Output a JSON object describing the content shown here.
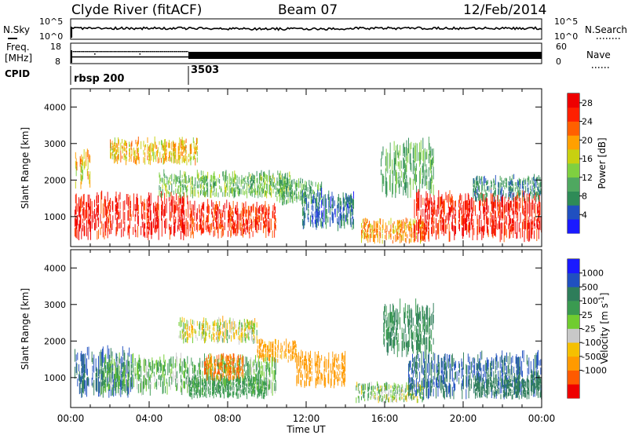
{
  "header": {
    "title": "Clyde River (fitACF)",
    "beam": "Beam 07",
    "date": "12/Feb/2014"
  },
  "noise_panel": {
    "left_label": "N.Sky",
    "right_label": "N.Search",
    "left_ticks": [
      "10^5",
      "10^0"
    ],
    "right_ticks": [
      "10^5",
      "10^0"
    ]
  },
  "freq_panel": {
    "left_label_line1": "Freq.",
    "left_label_line2": "[MHz]",
    "right_label": "Nave",
    "left_ticks": [
      "18",
      "8"
    ],
    "right_ticks": [
      "60",
      "0"
    ]
  },
  "cpid_panel": {
    "label": "CPID",
    "segments": [
      {
        "start_hour": 0,
        "text": "rbsp 200"
      },
      {
        "start_hour": 6,
        "text": "3503"
      }
    ]
  },
  "colors": {
    "power_scale": [
      "#1a1aff",
      "#2050c0",
      "#2e8b57",
      "#4fa860",
      "#7fd040",
      "#c8d010",
      "#ffa000",
      "#ff6000",
      "#ff2000",
      "#ee0000"
    ],
    "velocity_scale": [
      "#ee0000",
      "#ff5a00",
      "#ff9a00",
      "#f5c000",
      "#c8c8c8",
      "#70cc30",
      "#3a9a50",
      "#2e7d5a",
      "#2050c0",
      "#1a1aff"
    ]
  },
  "chart_data": [
    {
      "type": "heatmap",
      "name": "power",
      "xlabel": "Time UT",
      "ylabel": "Slant Range [km]",
      "xlim": [
        0,
        24
      ],
      "ylim": [
        180,
        4500
      ],
      "x_tick_labels": [
        "00:00",
        "04:00",
        "08:00",
        "12:00",
        "16:00",
        "20:00",
        "00:00"
      ],
      "y_ticks": [
        1000,
        2000,
        3000,
        4000
      ],
      "colorbar_label": "Power [dB]",
      "colorbar_ticks": [
        4,
        8,
        12,
        16,
        20,
        24,
        28
      ],
      "colorbar_range": [
        0,
        30
      ],
      "regions": [
        {
          "t": [
            0.2,
            6.0
          ],
          "r": [
            350,
            1750
          ],
          "v": 27
        },
        {
          "t": [
            0.2,
            1.0
          ],
          "r": [
            1750,
            2900
          ],
          "v": 18
        },
        {
          "t": [
            6.0,
            10.5
          ],
          "r": [
            400,
            1500
          ],
          "v": 25
        },
        {
          "t": [
            4.5,
            11.2
          ],
          "r": [
            1500,
            2300
          ],
          "v": 12
        },
        {
          "t": [
            2.0,
            6.5
          ],
          "r": [
            2400,
            3200
          ],
          "v": 18
        },
        {
          "t": [
            10.5,
            12.8
          ],
          "r": [
            1300,
            2100
          ],
          "v": 10
        },
        {
          "t": [
            11.8,
            14.5
          ],
          "r": [
            600,
            1800
          ],
          "v": 6
        },
        {
          "t": [
            14.8,
            18.0
          ],
          "r": [
            250,
            1000
          ],
          "v": 20
        },
        {
          "t": [
            15.8,
            18.5
          ],
          "r": [
            1500,
            3200
          ],
          "v": 10
        },
        {
          "t": [
            17.5,
            24.0
          ],
          "r": [
            300,
            1800
          ],
          "v": 27
        },
        {
          "t": [
            20.5,
            24.0
          ],
          "r": [
            1400,
            2200
          ],
          "v": 8
        }
      ]
    },
    {
      "type": "heatmap",
      "name": "velocity",
      "xlabel": "Time UT",
      "ylabel": "Slant Range [km]",
      "xlim": [
        0,
        24
      ],
      "ylim": [
        180,
        4500
      ],
      "x_tick_labels": [
        "00:00",
        "04:00",
        "08:00",
        "12:00",
        "16:00",
        "20:00",
        "00:00"
      ],
      "y_ticks": [
        1000,
        2000,
        3000,
        4000
      ],
      "colorbar_label": "Velocity [m s^-1]",
      "colorbar_ticks": [
        "1000",
        "500",
        "100",
        "25",
        "-25",
        "-100",
        "-500",
        "-1000"
      ],
      "regions": [
        {
          "t": [
            0.2,
            3.2
          ],
          "r": [
            400,
            1900
          ],
          "v": 1000
        },
        {
          "t": [
            1.5,
            10.5
          ],
          "r": [
            500,
            1700
          ],
          "v": 100
        },
        {
          "t": [
            6.0,
            10.0
          ],
          "r": [
            400,
            1100
          ],
          "v": 400
        },
        {
          "t": [
            6.8,
            8.8
          ],
          "r": [
            900,
            1700
          ],
          "v": -500
        },
        {
          "t": [
            5.5,
            9.5
          ],
          "r": [
            1900,
            2700
          ],
          "v": 0
        },
        {
          "t": [
            9.5,
            11.5
          ],
          "r": [
            1400,
            2100
          ],
          "v": -200
        },
        {
          "t": [
            11.5,
            14.0
          ],
          "r": [
            700,
            1800
          ],
          "v": -300
        },
        {
          "t": [
            14.5,
            18.0
          ],
          "r": [
            300,
            900
          ],
          "v": 60
        },
        {
          "t": [
            15.8,
            18.5
          ],
          "r": [
            1500,
            3200
          ],
          "v": 500
        },
        {
          "t": [
            17.2,
            24.0
          ],
          "r": [
            400,
            1800
          ],
          "v": 1000
        },
        {
          "t": [
            20.5,
            24.0
          ],
          "r": [
            400,
            1100
          ],
          "v": 700
        }
      ]
    }
  ]
}
